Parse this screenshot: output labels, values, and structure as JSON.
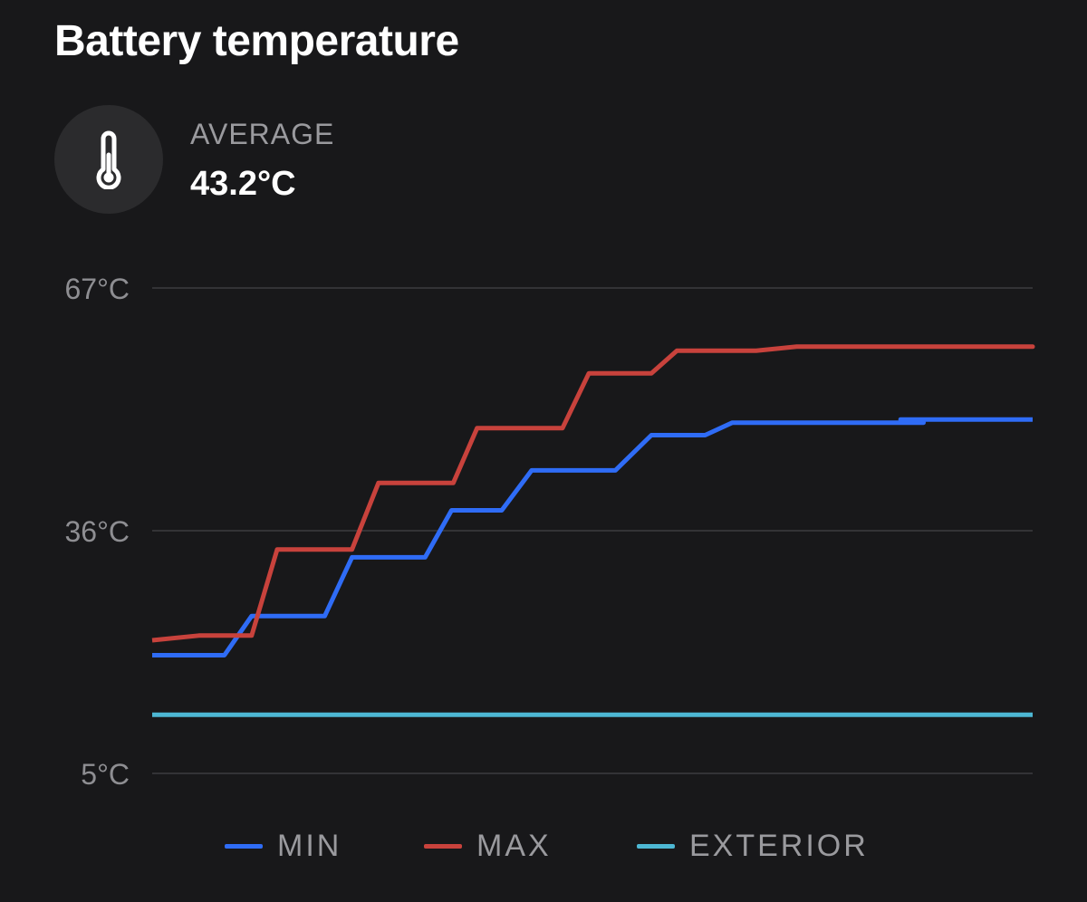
{
  "header": {
    "title": "Battery temperature"
  },
  "summary": {
    "icon": "thermometer-icon",
    "label": "AVERAGE",
    "value": "43.2°C"
  },
  "legend": {
    "min_label": "MIN",
    "max_label": "MAX",
    "exterior_label": "EXTERIOR"
  },
  "colors": {
    "min": "#2f6cf6",
    "max": "#c8423c",
    "exterior": "#4db7d3",
    "background": "#18181a",
    "grid": "#3c3c40"
  },
  "chart_data": {
    "type": "line",
    "title": "Battery temperature",
    "ylabel": "",
    "xlabel": "",
    "y_ticks": [
      {
        "value": 67,
        "label": "67°C"
      },
      {
        "value": 36,
        "label": "36°C"
      },
      {
        "value": 5,
        "label": "5°C"
      }
    ],
    "ylim": [
      5,
      67
    ],
    "xlim": [
      0,
      100
    ],
    "grid": true,
    "legend_position": "bottom",
    "series": [
      {
        "name": "MIN",
        "color": "#2f6cf6",
        "x": [
          0,
          8.2,
          11.3,
          19.6,
          22.7,
          31.0,
          34.0,
          39.7,
          43.1,
          52.6,
          56.7,
          62.8,
          65.9,
          87.6,
          85,
          100
        ],
        "y": [
          20.1,
          20.1,
          25.1,
          25.1,
          32.6,
          32.6,
          38.6,
          38.6,
          43.7,
          43.7,
          48.2,
          48.2,
          49.8,
          49.8,
          50.2,
          50.2
        ]
      },
      {
        "name": "MAX",
        "color": "#c8423c",
        "x": [
          0,
          5.3,
          11.3,
          14.2,
          22.7,
          25.7,
          34.2,
          36.9,
          46.6,
          49.6,
          56.7,
          59.6,
          68.6,
          73.2,
          100,
          96.0
        ],
        "y": [
          22.0,
          22.6,
          22.6,
          33.6,
          33.6,
          42.1,
          42.1,
          49.1,
          49.1,
          56.1,
          56.1,
          59.0,
          59.0,
          59.5,
          59.5,
          59.5
        ]
      },
      {
        "name": "EXTERIOR",
        "color": "#4db7d3",
        "x": [
          0,
          100
        ],
        "y": [
          12.5,
          12.5
        ]
      }
    ]
  }
}
